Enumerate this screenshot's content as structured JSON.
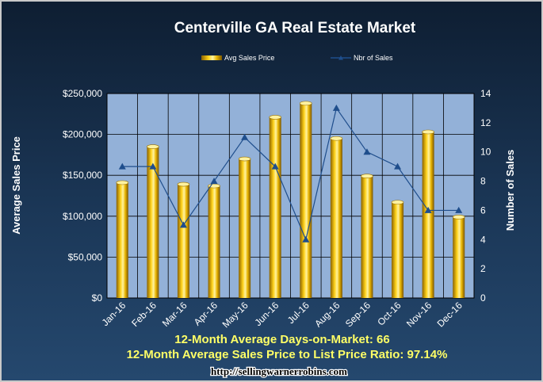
{
  "chart_data": {
    "type": "bar",
    "title": "Centerville GA Real Estate Market",
    "categories": [
      "Jan-16",
      "Feb-16",
      "Mar-16",
      "Apr-16",
      "May-16",
      "Jun-16",
      "Jul-16",
      "Aug-16",
      "Sep-16",
      "Oct-16",
      "Nov-16",
      "Dec-16"
    ],
    "series": [
      {
        "name": "Avg Sales Price",
        "type": "bar",
        "axis": "left",
        "values": [
          141000,
          185000,
          139000,
          137000,
          170000,
          221000,
          238000,
          195000,
          149000,
          117000,
          203000,
          99000
        ]
      },
      {
        "name": "Nbr of Sales",
        "type": "line",
        "axis": "right",
        "values": [
          9,
          9,
          5,
          8,
          11,
          9,
          4,
          13,
          10,
          9,
          6,
          6
        ]
      }
    ],
    "ylabel": "Average Sales Price",
    "y2label": "Number of Sales",
    "ylim": [
      0,
      250000
    ],
    "y2lim": [
      0,
      14
    ],
    "yticks": [
      "$0",
      "$50,000",
      "$100,000",
      "$150,000",
      "$200,000",
      "$250,000"
    ],
    "y2ticks": [
      "0",
      "2",
      "4",
      "6",
      "8",
      "10",
      "12",
      "14"
    ],
    "legend_position": "top",
    "grid": true,
    "colors": {
      "bar": "#e6b800",
      "line": "#1f4e8c",
      "plot_bg": "#93b1d8",
      "note": "#ffff66"
    }
  },
  "notes": {
    "days_on_market": "12-Month Average Days-on-Market: 66",
    "price_ratio": "12-Month Average Sales Price to List Price Ratio: 97.14%"
  },
  "website": "http://sellingwarnerrobins.com"
}
